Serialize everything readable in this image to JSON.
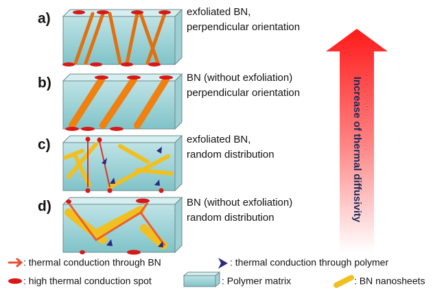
{
  "panels": [
    {
      "label": "a)",
      "lines": [
        "exfoliated BN,",
        "perpendicular orientation"
      ]
    },
    {
      "label": "b)",
      "lines": [
        "BN (without exfoliation)",
        "perpendicular orientation"
      ]
    },
    {
      "label": "c)",
      "lines": [
        "exfoliated BN,",
        "random distribution"
      ]
    },
    {
      "label": "d)",
      "lines": [
        "BN (without exfoliation)",
        "random distribution"
      ]
    }
  ],
  "arrow_label": "Increase of thermal diffusivity",
  "legend": [
    ": thermal conduction through BN",
    ": thermal conduction through polymer",
    ": high thermal conduction spot",
    ": Polymer matrix",
    ": BN nanosheets"
  ]
}
